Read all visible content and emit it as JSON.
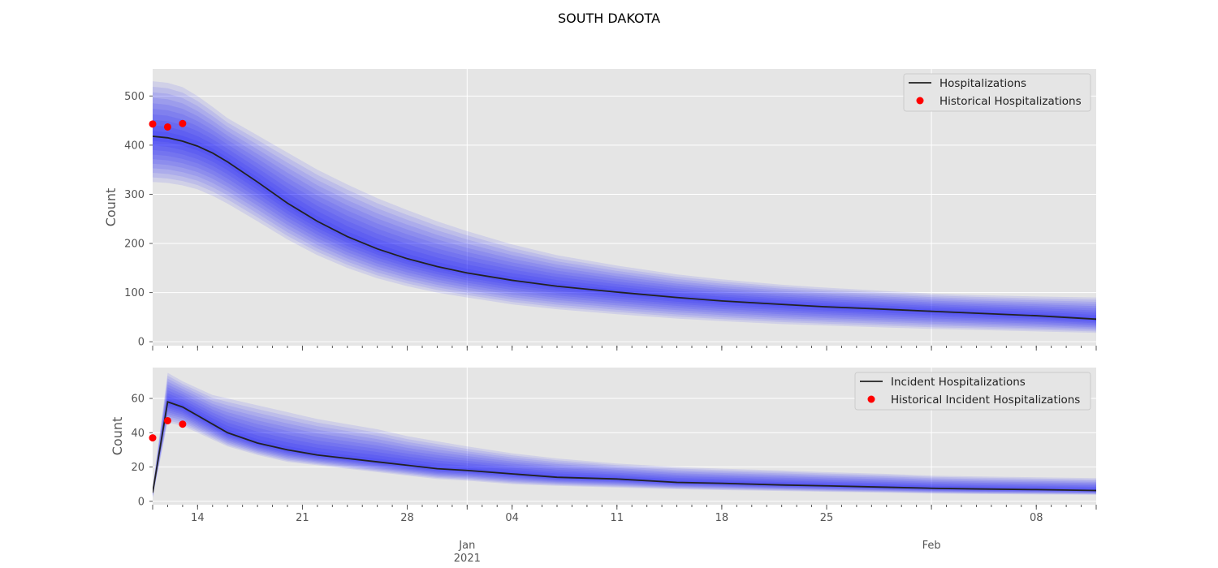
{
  "figure": {
    "title": "SOUTH DAKOTA",
    "x_ticks": [
      {
        "date": "2020-12-14",
        "label": "14",
        "sublabel": ""
      },
      {
        "date": "2020-12-21",
        "label": "21",
        "sublabel": ""
      },
      {
        "date": "2020-12-28",
        "label": "28",
        "sublabel": ""
      },
      {
        "date": "2021-01-01",
        "label": "Jan",
        "sublabel": "2021"
      },
      {
        "date": "2021-01-04",
        "label": "04",
        "sublabel": ""
      },
      {
        "date": "2021-01-11",
        "label": "11",
        "sublabel": ""
      },
      {
        "date": "2021-01-18",
        "label": "18",
        "sublabel": ""
      },
      {
        "date": "2021-01-25",
        "label": "25",
        "sublabel": ""
      },
      {
        "date": "2021-02-01",
        "label": "Feb",
        "sublabel": ""
      },
      {
        "date": "2021-02-08",
        "label": "08",
        "sublabel": ""
      }
    ],
    "colors": {
      "background": "#e5e5e5",
      "grid": "#ffffff",
      "band": "#0000ff",
      "median": "#222222",
      "historical": "#ff0000",
      "text": "#555555"
    }
  },
  "chart_data": [
    {
      "type": "line",
      "ylabel": "Count",
      "ylim": [
        -8,
        555
      ],
      "xlim": [
        "2020-12-11",
        "2021-02-12"
      ],
      "yticks": [
        0,
        100,
        200,
        300,
        400,
        500
      ],
      "grid": true,
      "legend_position": "top-right",
      "series": [
        {
          "name": "Hospitalizations",
          "kind": "median-line",
          "x": [
            "2020-12-11",
            "2020-12-12",
            "2020-12-13",
            "2020-12-14",
            "2020-12-15",
            "2020-12-16",
            "2020-12-18",
            "2020-12-20",
            "2020-12-22",
            "2020-12-24",
            "2020-12-26",
            "2020-12-28",
            "2020-12-30",
            "2021-01-01",
            "2021-01-04",
            "2021-01-07",
            "2021-01-11",
            "2021-01-15",
            "2021-01-18",
            "2021-01-22",
            "2021-01-25",
            "2021-01-29",
            "2021-02-01",
            "2021-02-04",
            "2021-02-08",
            "2021-02-12"
          ],
          "y": [
            418,
            415,
            408,
            398,
            384,
            366,
            325,
            282,
            245,
            214,
            189,
            169,
            153,
            140,
            125,
            113,
            101,
            90,
            83,
            76,
            71,
            66,
            62,
            58,
            53,
            46
          ]
        },
        {
          "name": "Historical Hospitalizations",
          "kind": "points",
          "x": [
            "2020-12-11",
            "2020-12-12",
            "2020-12-13"
          ],
          "y": [
            443,
            437,
            444
          ]
        }
      ],
      "uncertainty_band": {
        "x": [
          "2020-12-11",
          "2020-12-12",
          "2020-12-13",
          "2020-12-14",
          "2020-12-15",
          "2020-12-16",
          "2020-12-18",
          "2020-12-20",
          "2020-12-22",
          "2020-12-24",
          "2020-12-26",
          "2020-12-28",
          "2020-12-30",
          "2021-01-01",
          "2021-01-04",
          "2021-01-07",
          "2021-01-11",
          "2021-01-15",
          "2021-01-18",
          "2021-01-22",
          "2021-01-25",
          "2021-01-29",
          "2021-02-01",
          "2021-02-04",
          "2021-02-08",
          "2021-02-12"
        ],
        "lower": [
          325,
          323,
          318,
          310,
          297,
          281,
          245,
          208,
          176,
          150,
          129,
          113,
          100,
          90,
          76,
          66,
          56,
          47,
          42,
          36,
          33,
          29,
          26,
          24,
          21,
          18
        ],
        "upper": [
          530,
          527,
          518,
          500,
          478,
          455,
          420,
          385,
          350,
          320,
          292,
          268,
          245,
          225,
          198,
          176,
          155,
          137,
          127,
          116,
          110,
          103,
          98,
          95,
          92,
          90
        ],
        "levels": 10
      }
    },
    {
      "type": "line",
      "ylabel": "Count",
      "ylim": [
        -2,
        78
      ],
      "xlim": [
        "2020-12-11",
        "2021-02-12"
      ],
      "yticks": [
        0,
        20,
        40,
        60
      ],
      "grid": true,
      "legend_position": "top-right",
      "series": [
        {
          "name": "Incident Hospitalizations",
          "kind": "median-line",
          "x": [
            "2020-12-11",
            "2020-12-12",
            "2020-12-13",
            "2020-12-14",
            "2020-12-15",
            "2020-12-16",
            "2020-12-18",
            "2020-12-20",
            "2020-12-22",
            "2020-12-24",
            "2020-12-26",
            "2020-12-28",
            "2020-12-30",
            "2021-01-01",
            "2021-01-04",
            "2021-01-07",
            "2021-01-11",
            "2021-01-15",
            "2021-01-18",
            "2021-01-22",
            "2021-01-25",
            "2021-01-29",
            "2021-02-01",
            "2021-02-04",
            "2021-02-08",
            "2021-02-12"
          ],
          "y": [
            5,
            58,
            55,
            50,
            45,
            40,
            34,
            30,
            27,
            25,
            23,
            21,
            19,
            18,
            16,
            14,
            13,
            11,
            10.5,
            9.5,
            9,
            8.2,
            7.6,
            7.2,
            6.8,
            6.3
          ]
        },
        {
          "name": "Historical Incident Hospitalizations",
          "kind": "points",
          "x": [
            "2020-12-11",
            "2020-12-12",
            "2020-12-13"
          ],
          "y": [
            37,
            47,
            45
          ]
        }
      ],
      "uncertainty_band": {
        "x": [
          "2020-12-11",
          "2020-12-12",
          "2020-12-13",
          "2020-12-14",
          "2020-12-15",
          "2020-12-16",
          "2020-12-18",
          "2020-12-20",
          "2020-12-22",
          "2020-12-24",
          "2020-12-26",
          "2020-12-28",
          "2020-12-30",
          "2021-01-01",
          "2021-01-04",
          "2021-01-07",
          "2021-01-11",
          "2021-01-15",
          "2021-01-18",
          "2021-01-22",
          "2021-01-25",
          "2021-01-29",
          "2021-02-01",
          "2021-02-04",
          "2021-02-08",
          "2021-02-12"
        ],
        "lower": [
          2,
          46,
          44,
          40,
          36,
          32,
          27,
          23,
          21,
          19,
          17,
          15,
          13,
          12,
          10,
          9,
          8,
          7,
          6.5,
          6,
          5.5,
          5,
          4.5,
          4.2,
          4,
          3.8
        ],
        "upper": [
          8,
          75,
          70,
          66,
          62,
          60,
          56,
          52,
          48,
          45,
          42,
          38,
          35,
          32,
          28,
          25,
          22,
          20,
          19,
          18,
          17,
          16,
          15,
          14.5,
          14,
          13.5
        ],
        "levels": 10
      }
    }
  ]
}
